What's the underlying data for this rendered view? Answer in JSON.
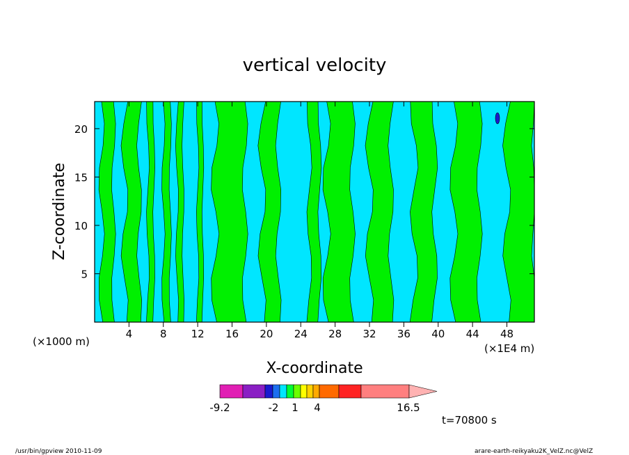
{
  "chart_data": {
    "type": "heatmap",
    "title": "vertical velocity",
    "xlabel": "X-coordinate",
    "ylabel": "Z-coordinate",
    "x_units_left": "(×1000 m)",
    "x_units_right": "(×1E4 m)",
    "xlim": [
      0,
      51.2
    ],
    "ylim": [
      0,
      22.8
    ],
    "x_ticks": [
      "4",
      "8",
      "12",
      "16",
      "20",
      "24",
      "28",
      "32",
      "36",
      "40",
      "44",
      "48"
    ],
    "y_ticks": [
      "5",
      "10",
      "15",
      "20"
    ],
    "time_label": "t=70800 s",
    "colorbar": {
      "tick_labels": [
        "-9.2",
        "-2",
        "1",
        "4",
        "16.5"
      ],
      "colors": [
        "#e11fb4",
        "#8a1fc4",
        "#1a1ad0",
        "#1c6ff0",
        "#00e6ff",
        "#00ff35",
        "#6cff00",
        "#ffff00",
        "#ffd200",
        "#ffaa00",
        "#ff6a00",
        "#ff2323",
        "#ff7f7f",
        "#ffb2b2"
      ]
    },
    "colors": {
      "positive": "#00f000",
      "negative": "#00e6ff",
      "strong_negative": "#1a1ad0"
    },
    "up_regions_x_ranges": [
      [
        0.8,
        2.2
      ],
      [
        3.5,
        5.2
      ],
      [
        6.2,
        6.9
      ],
      [
        8.0,
        8.8
      ],
      [
        9.6,
        10.3
      ],
      [
        12.0,
        12.6
      ],
      [
        14.0,
        17.5
      ],
      [
        19.5,
        21.4
      ],
      [
        25.0,
        26.2
      ],
      [
        27.0,
        30.0
      ],
      [
        32.0,
        34.5
      ],
      [
        37.2,
        39.6
      ],
      [
        41.8,
        44.8
      ],
      [
        48.0,
        51.2
      ]
    ]
  },
  "footer": {
    "left": "/usr/bin/gpview   2010-11-09",
    "right": "arare-earth-reikyaku2K_VelZ.nc@VelZ"
  }
}
